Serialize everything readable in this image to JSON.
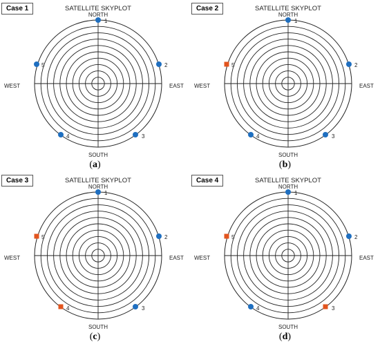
{
  "colors": {
    "normal": "#1f6fc0",
    "anomaly": "#e2541e",
    "grid": "#222222"
  },
  "panels": [
    {
      "case_label": "Case 1",
      "title": "SATELLITE SKYPLOT",
      "caption": "a",
      "directions": {
        "north": "NORTH",
        "south": "SOUTH",
        "east": "EAST",
        "west": "WEST"
      },
      "satellites": [
        {
          "id": "1",
          "marker": "circle"
        },
        {
          "id": "2",
          "marker": "circle"
        },
        {
          "id": "3",
          "marker": "circle"
        },
        {
          "id": "4",
          "marker": "circle"
        },
        {
          "id": "5",
          "marker": "circle"
        }
      ]
    },
    {
      "case_label": "Case 2",
      "title": "SATELLITE SKYPLOT",
      "caption": "b",
      "directions": {
        "north": "NORTH",
        "south": "SOUTH",
        "east": "EAST",
        "west": "WEST"
      },
      "satellites": [
        {
          "id": "1",
          "marker": "circle"
        },
        {
          "id": "2",
          "marker": "circle"
        },
        {
          "id": "3",
          "marker": "circle"
        },
        {
          "id": "4",
          "marker": "circle"
        },
        {
          "id": "5",
          "marker": "square"
        }
      ]
    },
    {
      "case_label": "Case 3",
      "title": "SATELLITE SKYPLOT",
      "caption": "c",
      "directions": {
        "north": "NORTH",
        "south": "SOUTH",
        "east": "EAST",
        "west": "WEST"
      },
      "satellites": [
        {
          "id": "1",
          "marker": "circle"
        },
        {
          "id": "2",
          "marker": "circle"
        },
        {
          "id": "3",
          "marker": "circle"
        },
        {
          "id": "4",
          "marker": "square"
        },
        {
          "id": "5",
          "marker": "square"
        }
      ]
    },
    {
      "case_label": "Case 4",
      "title": "SATELLITE SKYPLOT",
      "caption": "d",
      "directions": {
        "north": "NORTH",
        "south": "SOUTH",
        "east": "EAST",
        "west": "WEST"
      },
      "satellites": [
        {
          "id": "1",
          "marker": "circle"
        },
        {
          "id": "2",
          "marker": "circle"
        },
        {
          "id": "3",
          "marker": "square"
        },
        {
          "id": "4",
          "marker": "circle"
        },
        {
          "id": "5",
          "marker": "square"
        }
      ]
    }
  ]
}
